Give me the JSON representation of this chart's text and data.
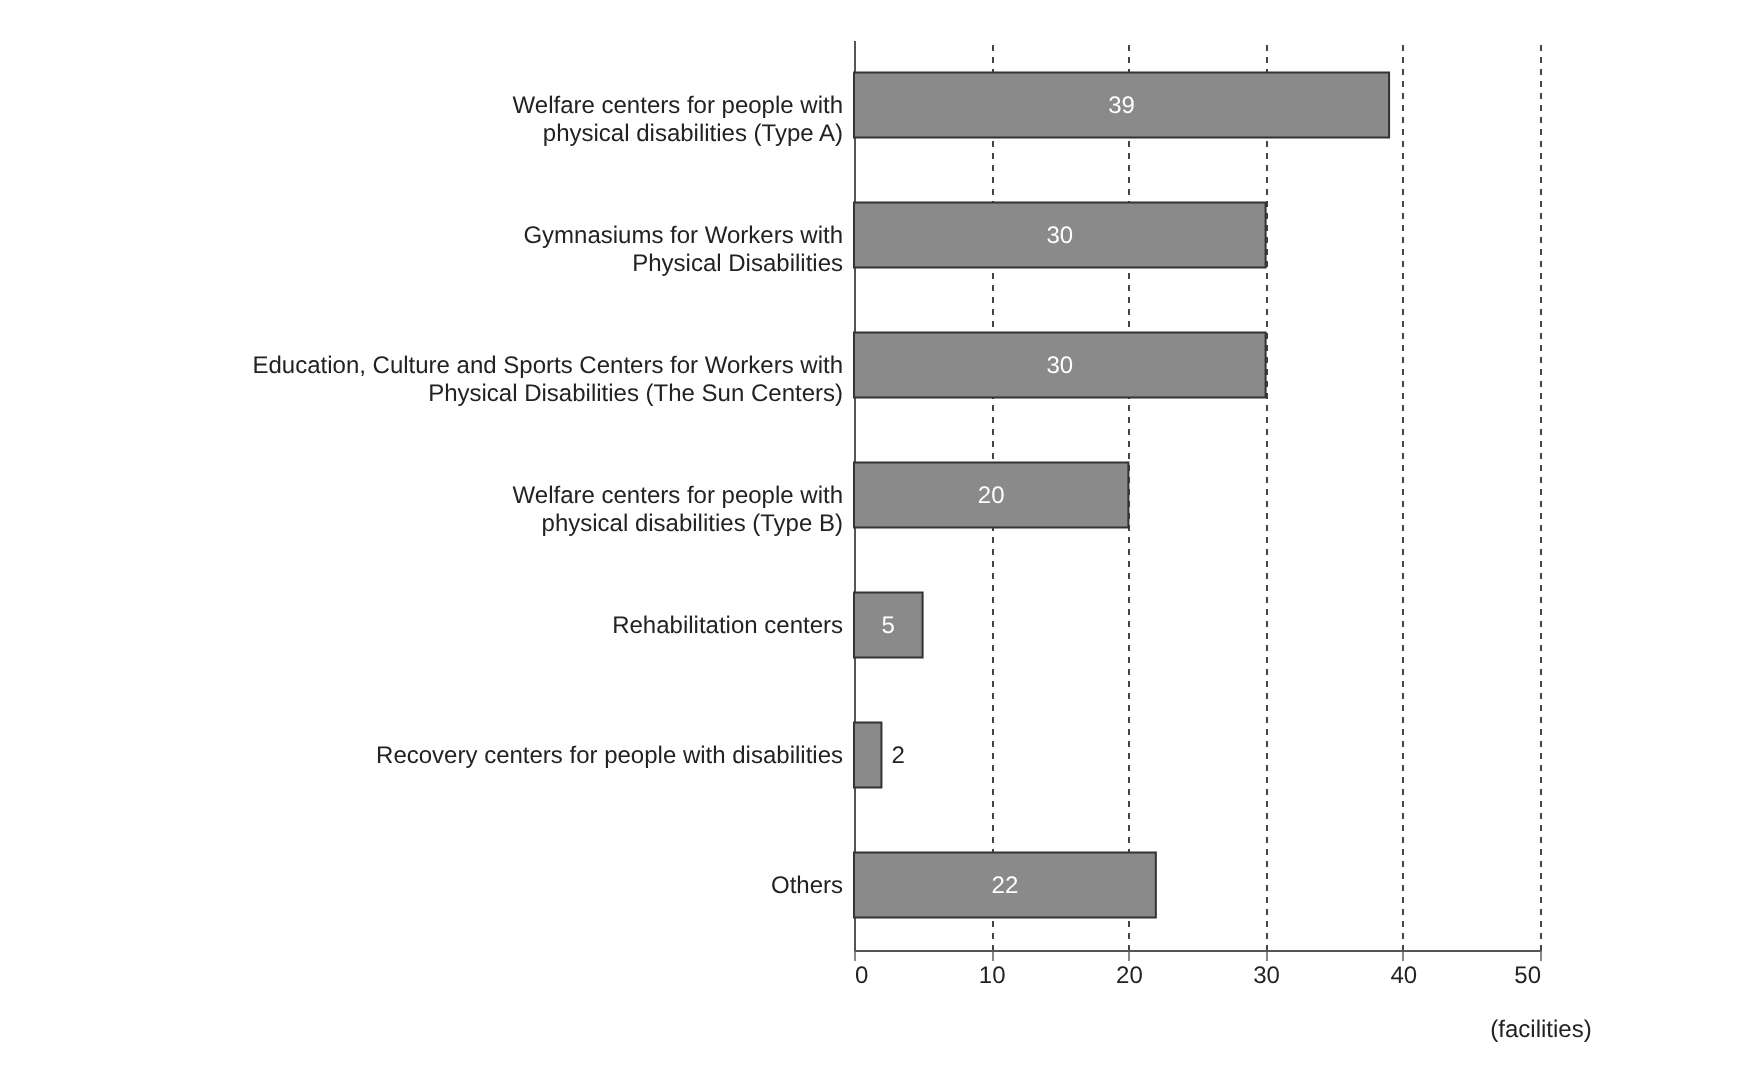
{
  "chart_data": {
    "type": "bar",
    "orientation": "horizontal",
    "xlabel": "(facilities)",
    "categories": [
      "Welfare centers for people with\nphysical disabilities (Type A)",
      "Gymnasiums for Workers with\nPhysical Disabilities",
      "Education, Culture and Sports Centers for Workers with\nPhysical Disabilities (The Sun Centers)",
      "Welfare centers for people with\nphysical disabilities (Type B)",
      "Rehabilitation centers",
      "Recovery centers for people with disabilities",
      "Others"
    ],
    "values": [
      39,
      30,
      30,
      20,
      5,
      2,
      22
    ],
    "color": "#8a8a8a",
    "xlim": [
      0,
      50
    ],
    "xticks": [
      0,
      10,
      20,
      30,
      40,
      50
    ],
    "grid": "x",
    "data_labels": true
  }
}
